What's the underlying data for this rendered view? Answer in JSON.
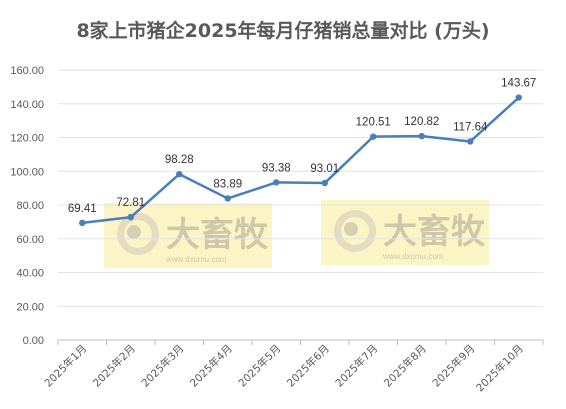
{
  "chart_data": {
    "type": "line",
    "title": "8家上市猪企2025年每月仔猪销总量对比 (万头)",
    "categories": [
      "2025年1月",
      "2025年2月",
      "2025年3月",
      "2025年4月",
      "2025年5月",
      "2025年6月",
      "2025年7月",
      "2025年8月",
      "2025年9月",
      "2025年10月"
    ],
    "values": [
      69.41,
      72.81,
      98.28,
      83.89,
      93.38,
      93.01,
      120.51,
      120.82,
      117.64,
      143.67
    ],
    "value_labels": [
      "69.41",
      "72.81",
      "98.28",
      "83.89",
      "93.38",
      "93.01",
      "120.51",
      "120.82",
      "117.64",
      "143.67"
    ],
    "yticks": [
      "0.00",
      "20.00",
      "40.00",
      "60.00",
      "80.00",
      "100.00",
      "120.00",
      "140.00",
      "160.00"
    ],
    "ylim": [
      0,
      160
    ],
    "grid": true,
    "line_color": "#4a7ebb"
  },
  "watermark": {
    "brand": "大畜牧",
    "url": "www.dxumu.com",
    "bg_color": "#fbf4c4"
  }
}
